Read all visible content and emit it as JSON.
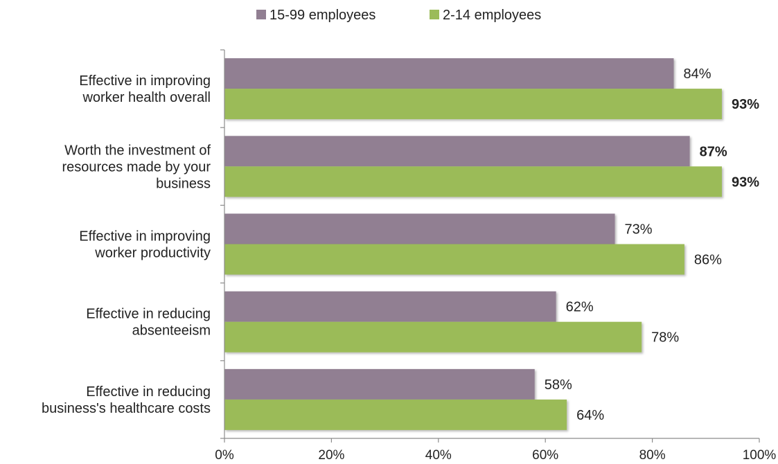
{
  "chart_data": {
    "type": "bar",
    "orientation": "horizontal",
    "categories": [
      [
        "Effective in improving",
        "worker health overall"
      ],
      [
        "Worth the investment of",
        "resources made by your",
        "business"
      ],
      [
        "Effective in improving",
        "worker productivity"
      ],
      [
        "Effective in reducing",
        "absenteeism"
      ],
      [
        "Effective in reducing",
        "business's healthcare costs"
      ]
    ],
    "series": [
      {
        "name": "15-99 employees",
        "color": "#917f92",
        "values": [
          84,
          87,
          73,
          62,
          58
        ],
        "labels": [
          "84%",
          "87%",
          "73%",
          "62%",
          "58%"
        ],
        "bold": [
          false,
          true,
          false,
          false,
          false
        ]
      },
      {
        "name": "2-14 employees",
        "color": "#9bbb59",
        "values": [
          93,
          93,
          86,
          78,
          64
        ],
        "labels": [
          "93%",
          "93%",
          "86%",
          "78%",
          "64%"
        ],
        "bold": [
          true,
          true,
          false,
          false,
          false
        ]
      }
    ],
    "xlim": [
      0,
      100
    ],
    "xticks": [
      0,
      20,
      40,
      60,
      80,
      100
    ],
    "xtick_labels": [
      "0%",
      "20%",
      "40%",
      "60%",
      "80%",
      "100%"
    ],
    "grid": false,
    "legend_position": "top-center"
  }
}
